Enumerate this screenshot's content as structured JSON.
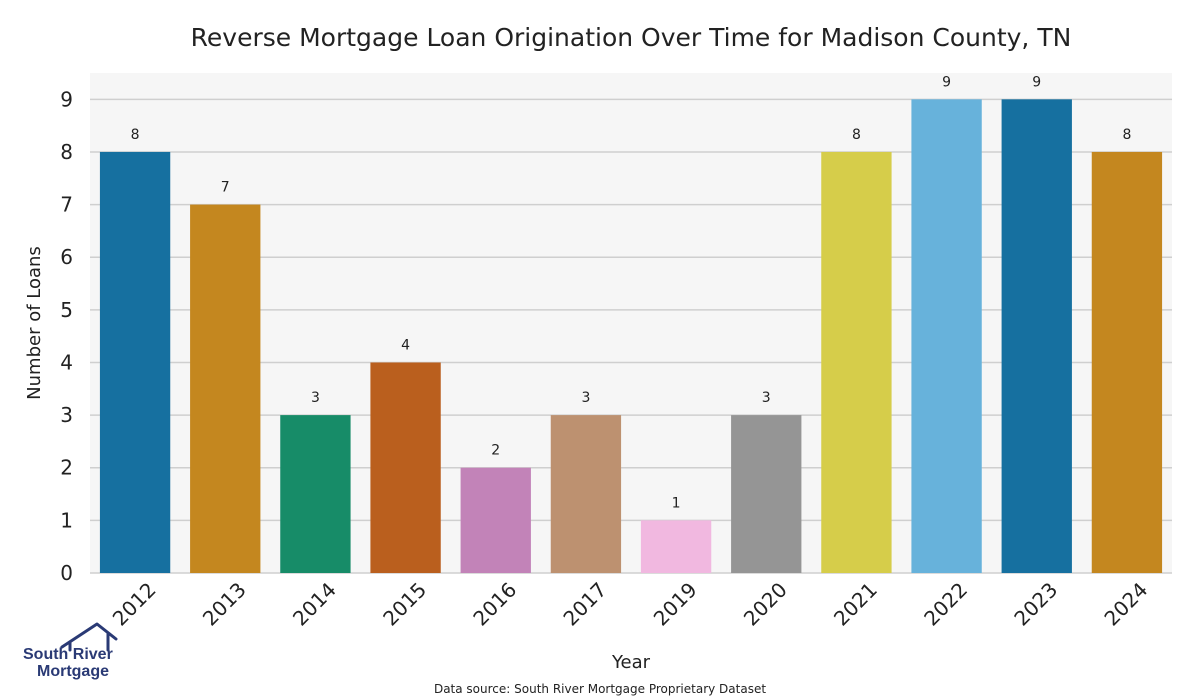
{
  "chart_data": {
    "type": "bar",
    "title": "Reverse Mortgage Loan Origination Over Time for Madison County, TN",
    "xlabel": "Year",
    "ylabel": "Number of Loans",
    "categories": [
      "2012",
      "2013",
      "2014",
      "2015",
      "2016",
      "2017",
      "2019",
      "2020",
      "2021",
      "2022",
      "2023",
      "2024"
    ],
    "values": [
      8,
      7,
      3,
      4,
      2,
      3,
      1,
      3,
      8,
      9,
      9,
      8
    ],
    "bar_colors": [
      "#1670a0",
      "#c4871f",
      "#178c68",
      "#ba5f1e",
      "#c283b8",
      "#bd9170",
      "#f1b8e0",
      "#959595",
      "#d6cd4a",
      "#67b2db",
      "#1670a0",
      "#c4871f"
    ],
    "yticks": [
      "0",
      "1",
      "2",
      "3",
      "4",
      "5",
      "6",
      "7",
      "8",
      "9"
    ],
    "ylim": [
      0,
      9.5
    ],
    "grid": true,
    "data_labels": true,
    "legend": false
  },
  "source_note": "Data source: South River Mortgage Proprietary Dataset",
  "logo": {
    "line1": "South River",
    "line2": "Mortgage",
    "icon": "house-roof-icon",
    "color": "#2a3a75"
  },
  "style": {
    "plot_background": "#f6f6f6",
    "grid_color": "#cfcfcf"
  }
}
